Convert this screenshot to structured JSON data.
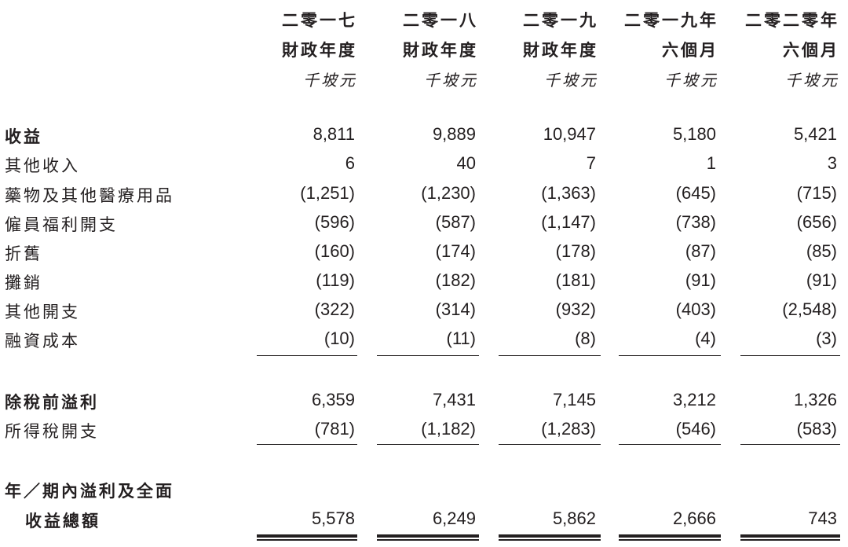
{
  "columns": [
    {
      "line1": "二零一七",
      "line2": "財政年度",
      "unit": "千坡元"
    },
    {
      "line1": "二零一八",
      "line2": "財政年度",
      "unit": "千坡元"
    },
    {
      "line1": "二零一九",
      "line2": "財政年度",
      "unit": "千坡元"
    },
    {
      "line1": "二零一九年",
      "line2": "六個月",
      "unit": "千坡元"
    },
    {
      "line1": "二零二零年",
      "line2": "六個月",
      "unit": "千坡元"
    }
  ],
  "rows": [
    {
      "label": "收益",
      "values": [
        "8,811",
        "9,889",
        "10,947",
        "5,180",
        "5,421"
      ]
    },
    {
      "label": "其他收入",
      "values": [
        "6",
        "40",
        "7",
        "1",
        "3"
      ]
    },
    {
      "label": "藥物及其他醫療用品",
      "values": [
        "(1,251)",
        "(1,230)",
        "(1,363)",
        "(645)",
        "(715)"
      ]
    },
    {
      "label": "僱員福利開支",
      "values": [
        "(596)",
        "(587)",
        "(1,147)",
        "(738)",
        "(656)"
      ]
    },
    {
      "label": "折舊",
      "values": [
        "(160)",
        "(174)",
        "(178)",
        "(87)",
        "(85)"
      ]
    },
    {
      "label": "攤銷",
      "values": [
        "(119)",
        "(182)",
        "(181)",
        "(91)",
        "(91)"
      ]
    },
    {
      "label": "其他開支",
      "values": [
        "(322)",
        "(314)",
        "(932)",
        "(403)",
        "(2,548)"
      ]
    },
    {
      "label": "融資成本",
      "values": [
        "(10)",
        "(11)",
        "(8)",
        "(4)",
        "(3)"
      ]
    },
    {
      "label": "除稅前溢利",
      "values": [
        "6,359",
        "7,431",
        "7,145",
        "3,212",
        "1,326"
      ]
    },
    {
      "label": "所得稅開支",
      "values": [
        "(781)",
        "(1,182)",
        "(1,283)",
        "(546)",
        "(583)"
      ]
    },
    {
      "label": "年／期內溢利及全面",
      "values": []
    },
    {
      "label": "收益總額",
      "values": [
        "5,578",
        "6,249",
        "5,862",
        "2,666",
        "743"
      ]
    }
  ]
}
